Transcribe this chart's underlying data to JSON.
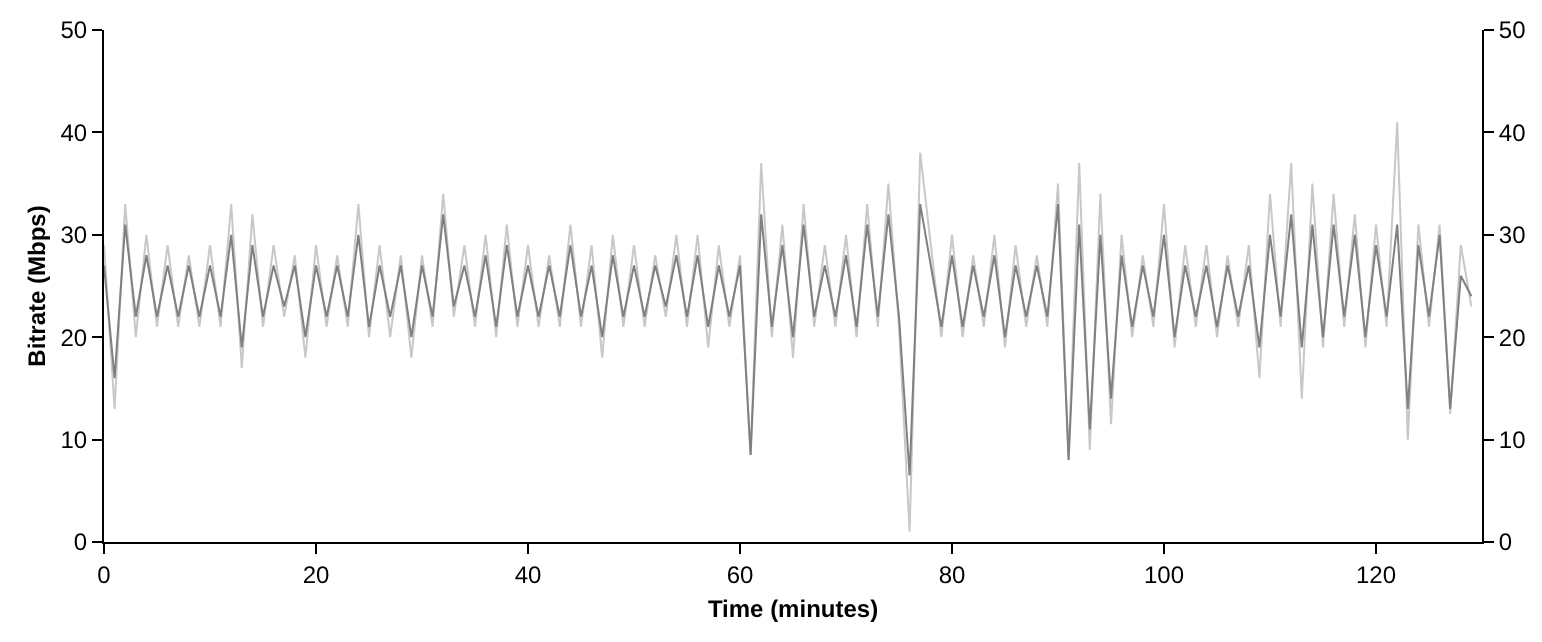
{
  "chart_data": {
    "type": "line",
    "xlabel": "Time (minutes)",
    "ylabel": "Bitrate (Mbps)",
    "x": [
      0,
      1,
      2,
      3,
      4,
      5,
      6,
      7,
      8,
      9,
      10,
      11,
      12,
      13,
      14,
      15,
      16,
      17,
      18,
      19,
      20,
      21,
      22,
      23,
      24,
      25,
      26,
      27,
      28,
      29,
      30,
      31,
      32,
      33,
      34,
      35,
      36,
      37,
      38,
      39,
      40,
      41,
      42,
      43,
      44,
      45,
      46,
      47,
      48,
      49,
      50,
      51,
      52,
      53,
      54,
      55,
      56,
      57,
      58,
      59,
      60,
      61,
      62,
      63,
      64,
      65,
      66,
      67,
      68,
      69,
      70,
      71,
      72,
      73,
      74,
      75,
      76,
      77,
      78,
      79,
      80,
      81,
      82,
      83,
      84,
      85,
      86,
      87,
      88,
      89,
      90,
      91,
      92,
      93,
      94,
      95,
      96,
      97,
      98,
      99,
      100,
      101,
      102,
      103,
      104,
      105,
      106,
      107,
      108,
      109,
      110,
      111,
      112,
      113,
      114,
      115,
      116,
      117,
      118,
      119,
      120,
      121,
      122,
      123,
      124,
      125,
      126,
      127,
      128,
      129
    ],
    "series": [
      {
        "color": "#c8c8c8",
        "values": [
          29,
          13,
          33,
          20,
          30,
          21,
          29,
          21,
          28,
          21,
          29,
          21,
          33,
          17,
          32,
          21,
          29,
          22,
          28,
          18,
          29,
          21,
          28,
          21,
          33,
          20,
          29,
          20,
          28,
          18,
          28,
          21,
          34,
          22,
          29,
          21,
          30,
          20,
          31,
          21,
          29,
          21,
          28,
          21,
          31,
          21,
          29,
          18,
          30,
          21,
          29,
          21,
          28,
          22,
          30,
          21,
          30,
          19,
          29,
          21,
          28,
          8.5,
          37,
          20,
          31,
          18,
          33,
          21,
          29,
          21,
          30,
          20,
          33,
          21,
          35,
          21,
          1,
          38,
          29,
          20,
          30,
          20,
          28,
          21,
          30,
          19,
          29,
          21,
          28,
          21,
          35,
          8,
          37,
          9,
          34,
          11.5,
          30,
          20,
          28,
          21,
          33,
          19,
          29,
          21,
          29,
          20,
          28,
          21,
          29,
          16,
          34,
          21,
          37,
          14,
          35,
          19,
          34,
          21,
          32,
          19,
          31,
          21,
          41,
          10,
          31,
          21,
          31,
          12.5,
          29,
          23
        ]
      },
      {
        "color": "#808080",
        "values": [
          27,
          16,
          31,
          22,
          28,
          22,
          27,
          22,
          27,
          22,
          27,
          22,
          30,
          19,
          29,
          22,
          27,
          23,
          27,
          20,
          27,
          22,
          27,
          22,
          30,
          21,
          27,
          22,
          27,
          20,
          27,
          22,
          32,
          23,
          27,
          22,
          28,
          21,
          29,
          22,
          27,
          22,
          27,
          22,
          29,
          22,
          27,
          20,
          28,
          22,
          27,
          22,
          27,
          23,
          28,
          22,
          28,
          21,
          27,
          22,
          27,
          8.5,
          32,
          21,
          29,
          20,
          31,
          22,
          27,
          22,
          28,
          21,
          31,
          22,
          32,
          22,
          6.5,
          33,
          27,
          21,
          28,
          21,
          27,
          22,
          28,
          20,
          27,
          22,
          27,
          22,
          33,
          8,
          31,
          11,
          30,
          14,
          28,
          21,
          27,
          22,
          30,
          20,
          27,
          22,
          27,
          21,
          27,
          22,
          27,
          19,
          30,
          22,
          32,
          19,
          31,
          20,
          31,
          22,
          30,
          20,
          29,
          22,
          31,
          13,
          29,
          22,
          30,
          13,
          26,
          24
        ]
      }
    ],
    "xlim": [
      0,
      130
    ],
    "xticks": [
      0,
      20,
      40,
      60,
      80,
      100,
      120
    ],
    "ylim": [
      0,
      50
    ],
    "yticks": [
      0,
      10,
      20,
      30,
      40,
      50
    ],
    "y2lim": [
      0,
      50
    ],
    "y2ticks": [
      0,
      10,
      20,
      30,
      40,
      50
    ],
    "marker": "none",
    "line_style": "solid"
  }
}
